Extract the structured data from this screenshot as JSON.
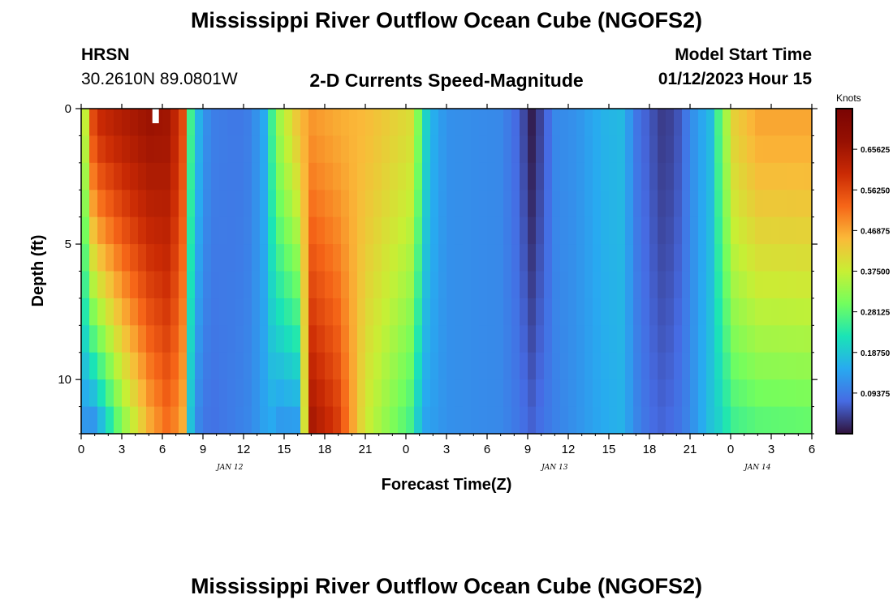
{
  "page": {
    "title_top": "Mississippi River Outflow Ocean Cube (NGOFS2)",
    "title_bottom": "Mississippi River Outflow Ocean Cube (NGOFS2)",
    "station": "HRSN",
    "coords": "30.2610N  89.0801W",
    "chart_title": "2-D Currents Speed-Magnitude",
    "model_label": "Model Start Time",
    "model_time": "01/12/2023 Hour 15"
  },
  "chart_data": {
    "type": "heatmap",
    "title": "2-D Currents Speed-Magnitude",
    "xlabel": "Forecast Time(Z)",
    "ylabel": "Depth (ft)",
    "colorbar_label": "Knots",
    "x_ticks": [
      "0",
      "3",
      "6",
      "9",
      "12",
      "15",
      "18",
      "21",
      "0",
      "3",
      "6",
      "9",
      "12",
      "15",
      "18",
      "21",
      "0",
      "3",
      "6"
    ],
    "x_range_hours": [
      0,
      54
    ],
    "date_labels": [
      {
        "hour": 11,
        "label": "JAN 12"
      },
      {
        "hour": 35,
        "label": "JAN 13"
      },
      {
        "hour": 50,
        "label": "JAN 14"
      }
    ],
    "y_ticks": [
      "0",
      "5",
      "10"
    ],
    "y_range_ft": [
      0,
      12
    ],
    "y_inverted": true,
    "colorbar_ticks": [
      "0.09375",
      "0.18750",
      "0.28125",
      "0.37500",
      "0.46875",
      "0.56250",
      "0.65625"
    ],
    "value_range_knots": [
      0,
      0.75
    ],
    "colors": {
      "low": "#30123b",
      "mid": "#a4fc3c",
      "high": "#7a0403",
      "marker": "#ffffff"
    },
    "speed_profile_by_hour": [
      [
        0,
        0.28,
        0.12
      ],
      [
        1,
        0.6,
        0.1
      ],
      [
        3,
        0.64,
        0.3
      ],
      [
        5,
        0.67,
        0.45
      ],
      [
        6.5,
        0.66,
        0.52
      ],
      [
        7.6,
        0.55,
        0.45
      ],
      [
        8.2,
        0.2,
        0.12
      ],
      [
        9.5,
        0.1,
        0.08
      ],
      [
        11.5,
        0.09,
        0.1
      ],
      [
        12.5,
        0.1,
        0.11
      ],
      [
        13.5,
        0.15,
        0.14
      ],
      [
        14,
        0.24,
        0.15
      ],
      [
        14.5,
        0.33,
        0.12
      ],
      [
        16,
        0.44,
        0.12
      ],
      [
        17,
        0.48,
        0.66
      ],
      [
        19,
        0.46,
        0.58
      ],
      [
        21,
        0.45,
        0.38
      ],
      [
        24.5,
        0.4,
        0.25
      ],
      [
        25.2,
        0.25,
        0.14
      ],
      [
        25.7,
        0.17,
        0.14
      ],
      [
        27,
        0.12,
        0.12
      ],
      [
        31,
        0.11,
        0.11
      ],
      [
        32.3,
        0.07,
        0.09
      ],
      [
        33.3,
        0.01,
        0.07
      ],
      [
        34.3,
        0.06,
        0.09
      ],
      [
        35,
        0.11,
        0.1
      ],
      [
        36.5,
        0.12,
        0.12
      ],
      [
        38.5,
        0.16,
        0.15
      ],
      [
        40,
        0.17,
        0.16
      ],
      [
        41,
        0.09,
        0.11
      ],
      [
        42,
        0.06,
        0.08
      ],
      [
        43.1,
        0.03,
        0.07
      ],
      [
        44.3,
        0.06,
        0.09
      ],
      [
        45,
        0.11,
        0.11
      ],
      [
        46.5,
        0.17,
        0.18
      ],
      [
        47.2,
        0.28,
        0.2
      ],
      [
        48.2,
        0.42,
        0.25
      ],
      [
        50,
        0.47,
        0.27
      ],
      [
        54,
        0.47,
        0.28
      ]
    ],
    "missing_cell": {
      "hour": 5.5,
      "depth_ft": 0.3
    }
  }
}
